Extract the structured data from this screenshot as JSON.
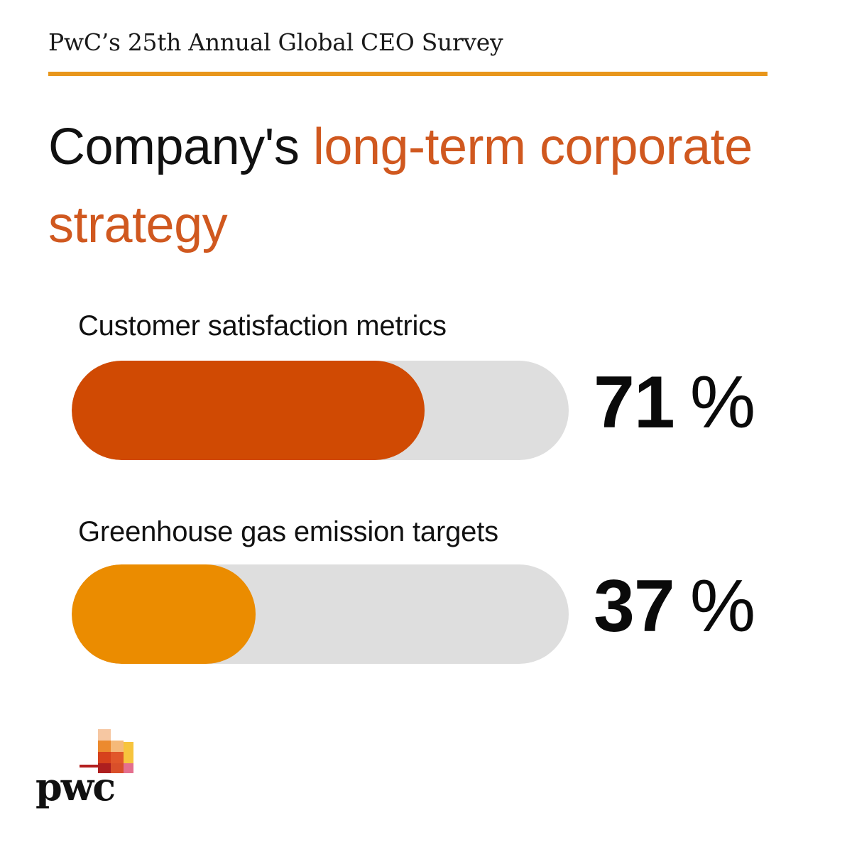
{
  "header": {
    "eyebrow": "PwC’s 25th Annual Global CEO Survey"
  },
  "title": {
    "lead": "Company's ",
    "highlight": "long-term corporate strategy"
  },
  "colors": {
    "accent": "#d0581f",
    "rule": "#e8961b",
    "track": "#dedede"
  },
  "chart_data": {
    "type": "bar",
    "orientation": "horizontal",
    "title": "Company's long-term corporate strategy",
    "categories": [
      "Customer satisfaction metrics",
      "Greenhouse gas emission targets"
    ],
    "values": [
      71,
      37
    ],
    "value_labels": [
      "71",
      "37"
    ],
    "unit": "%",
    "colors": [
      "#d04a03",
      "#eb8c00"
    ],
    "xlim": [
      0,
      100
    ]
  },
  "logo": {
    "wordmark": "pwc",
    "icon": "pwc-logo-icon"
  }
}
